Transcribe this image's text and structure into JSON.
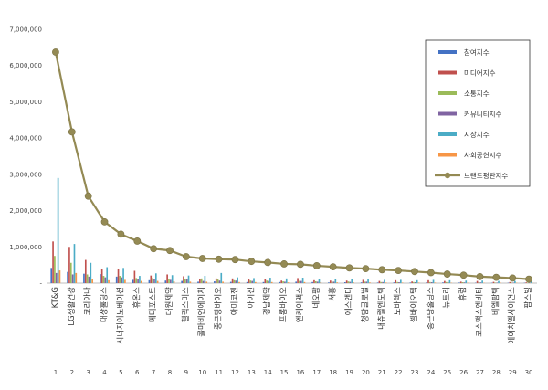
{
  "chart_data": {
    "type": "bar",
    "categories": [
      "KT&G",
      "LG생활건강",
      "코리아나",
      "대상홀딩스",
      "시너지이노베이션",
      "휴온스",
      "메디포스트",
      "대원제약",
      "헬릭스미스",
      "콜마비앤에이치",
      "종근당바이오",
      "아미코젠",
      "아이진",
      "경남제약",
      "프롬바이오",
      "엔케이맥스",
      "네오팜",
      "서흥",
      "에스앤디",
      "청담글로벌",
      "내츄럴엔도텍",
      "노바렉스",
      "셀바이오텍",
      "종근당홀딩스",
      "뉴트리",
      "휴럼",
      "코스맥스엔비티",
      "비엘팜텍",
      "에이치엘사이언스",
      "팜스빌"
    ],
    "ranks": [
      "1",
      "2",
      "3",
      "4",
      "5",
      "6",
      "7",
      "8",
      "9",
      "10",
      "11",
      "12",
      "13",
      "14",
      "15",
      "16",
      "17",
      "18",
      "19",
      "20",
      "21",
      "22",
      "23",
      "24",
      "25",
      "26",
      "27",
      "28",
      "29",
      "30"
    ],
    "yticks": [
      "7,000,000",
      "6,000,000",
      "5,000,000",
      "4,000,000",
      "3,000,000",
      "2,000,000",
      "1,000,000",
      "-"
    ],
    "ylim": [
      0,
      7000000
    ],
    "series": [
      {
        "name": "참여지수",
        "color": "#4472C4",
        "values": [
          420000,
          310000,
          260000,
          250000,
          180000,
          90000,
          80000,
          70000,
          60000,
          40000,
          50000,
          35000,
          30000,
          30000,
          30000,
          40000,
          30000,
          20000,
          25000,
          20000,
          15000,
          20000,
          15000,
          20000,
          20000,
          15000,
          10000,
          10000,
          10000,
          10000
        ]
      },
      {
        "name": "미디어지수",
        "color": "#C0504D",
        "values": [
          1150000,
          1000000,
          640000,
          400000,
          400000,
          340000,
          210000,
          240000,
          190000,
          110000,
          130000,
          130000,
          100000,
          110000,
          70000,
          140000,
          80000,
          70000,
          70000,
          90000,
          60000,
          80000,
          45000,
          80000,
          60000,
          40000,
          60000,
          35000,
          30000,
          20000
        ]
      },
      {
        "name": "소통지수",
        "color": "#9BBB59",
        "values": [
          750000,
          560000,
          240000,
          200000,
          200000,
          140000,
          140000,
          110000,
          110000,
          130000,
          100000,
          80000,
          70000,
          70000,
          50000,
          60000,
          50000,
          40000,
          45000,
          40000,
          30000,
          30000,
          30000,
          30000,
          30000,
          25000,
          20000,
          15000,
          15000,
          10000
        ]
      },
      {
        "name": "커뮤니티지수",
        "color": "#8064A2",
        "values": [
          280000,
          240000,
          180000,
          160000,
          160000,
          120000,
          110000,
          90000,
          100000,
          60000,
          70000,
          70000,
          60000,
          60000,
          40000,
          60000,
          40000,
          40000,
          35000,
          40000,
          30000,
          25000,
          25000,
          25000,
          20000,
          20000,
          20000,
          15000,
          15000,
          10000
        ]
      },
      {
        "name": "시장지수",
        "color": "#4BACC6",
        "values": [
          2900000,
          1080000,
          560000,
          440000,
          420000,
          200000,
          270000,
          220000,
          210000,
          200000,
          280000,
          160000,
          140000,
          150000,
          130000,
          150000,
          110000,
          120000,
          110000,
          100000,
          90000,
          90000,
          80000,
          90000,
          80000,
          70000,
          70000,
          60000,
          60000,
          50000
        ]
      },
      {
        "name": "사회공헌지수",
        "color": "#F79646",
        "values": [
          350000,
          280000,
          120000,
          80000,
          90000,
          60000,
          60000,
          50000,
          40000,
          40000,
          40000,
          30000,
          30000,
          30000,
          20000,
          30000,
          20000,
          20000,
          20000,
          20000,
          15000,
          15000,
          15000,
          15000,
          10000,
          10000,
          10000,
          10000,
          10000,
          5000
        ]
      }
    ],
    "line_series": {
      "name": "브랜드평판지수",
      "color": "#948A54",
      "values": [
        6370000,
        4170000,
        2400000,
        1690000,
        1350000,
        1160000,
        950000,
        900000,
        730000,
        680000,
        660000,
        650000,
        600000,
        570000,
        530000,
        520000,
        480000,
        450000,
        420000,
        400000,
        370000,
        350000,
        320000,
        290000,
        250000,
        220000,
        180000,
        160000,
        140000,
        110000
      ]
    },
    "legend_position": "top-right",
    "grid": false
  }
}
